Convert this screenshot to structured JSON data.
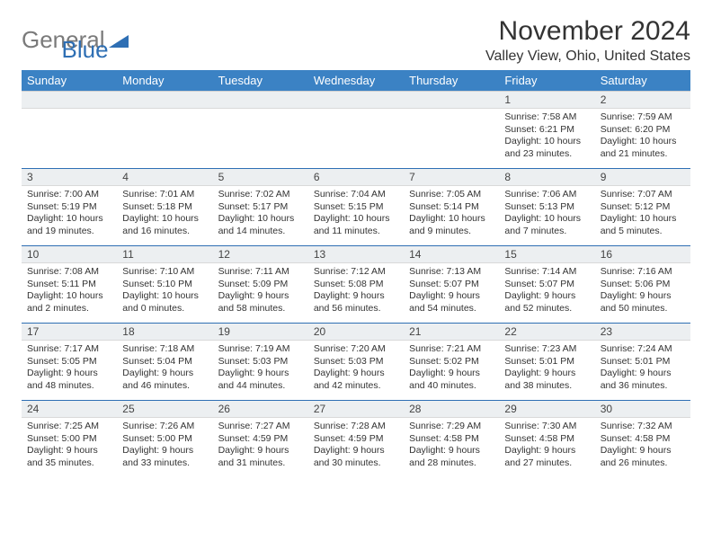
{
  "logo": {
    "text_general": "General",
    "text_blue": "Blue"
  },
  "title": "November 2024",
  "location": "Valley View, Ohio, United States",
  "colors": {
    "header_bg": "#3b82c4",
    "header_text": "#ffffff",
    "cell_border": "#2e6fb4",
    "daynum_bg": "#eceff1",
    "text": "#333333"
  },
  "weekdays": [
    "Sunday",
    "Monday",
    "Tuesday",
    "Wednesday",
    "Thursday",
    "Friday",
    "Saturday"
  ],
  "weeks": [
    [
      null,
      null,
      null,
      null,
      null,
      {
        "n": "1",
        "sunrise": "7:58 AM",
        "sunset": "6:21 PM",
        "dl": "10 hours and 23 minutes."
      },
      {
        "n": "2",
        "sunrise": "7:59 AM",
        "sunset": "6:20 PM",
        "dl": "10 hours and 21 minutes."
      }
    ],
    [
      {
        "n": "3",
        "sunrise": "7:00 AM",
        "sunset": "5:19 PM",
        "dl": "10 hours and 19 minutes."
      },
      {
        "n": "4",
        "sunrise": "7:01 AM",
        "sunset": "5:18 PM",
        "dl": "10 hours and 16 minutes."
      },
      {
        "n": "5",
        "sunrise": "7:02 AM",
        "sunset": "5:17 PM",
        "dl": "10 hours and 14 minutes."
      },
      {
        "n": "6",
        "sunrise": "7:04 AM",
        "sunset": "5:15 PM",
        "dl": "10 hours and 11 minutes."
      },
      {
        "n": "7",
        "sunrise": "7:05 AM",
        "sunset": "5:14 PM",
        "dl": "10 hours and 9 minutes."
      },
      {
        "n": "8",
        "sunrise": "7:06 AM",
        "sunset": "5:13 PM",
        "dl": "10 hours and 7 minutes."
      },
      {
        "n": "9",
        "sunrise": "7:07 AM",
        "sunset": "5:12 PM",
        "dl": "10 hours and 5 minutes."
      }
    ],
    [
      {
        "n": "10",
        "sunrise": "7:08 AM",
        "sunset": "5:11 PM",
        "dl": "10 hours and 2 minutes."
      },
      {
        "n": "11",
        "sunrise": "7:10 AM",
        "sunset": "5:10 PM",
        "dl": "10 hours and 0 minutes."
      },
      {
        "n": "12",
        "sunrise": "7:11 AM",
        "sunset": "5:09 PM",
        "dl": "9 hours and 58 minutes."
      },
      {
        "n": "13",
        "sunrise": "7:12 AM",
        "sunset": "5:08 PM",
        "dl": "9 hours and 56 minutes."
      },
      {
        "n": "14",
        "sunrise": "7:13 AM",
        "sunset": "5:07 PM",
        "dl": "9 hours and 54 minutes."
      },
      {
        "n": "15",
        "sunrise": "7:14 AM",
        "sunset": "5:07 PM",
        "dl": "9 hours and 52 minutes."
      },
      {
        "n": "16",
        "sunrise": "7:16 AM",
        "sunset": "5:06 PM",
        "dl": "9 hours and 50 minutes."
      }
    ],
    [
      {
        "n": "17",
        "sunrise": "7:17 AM",
        "sunset": "5:05 PM",
        "dl": "9 hours and 48 minutes."
      },
      {
        "n": "18",
        "sunrise": "7:18 AM",
        "sunset": "5:04 PM",
        "dl": "9 hours and 46 minutes."
      },
      {
        "n": "19",
        "sunrise": "7:19 AM",
        "sunset": "5:03 PM",
        "dl": "9 hours and 44 minutes."
      },
      {
        "n": "20",
        "sunrise": "7:20 AM",
        "sunset": "5:03 PM",
        "dl": "9 hours and 42 minutes."
      },
      {
        "n": "21",
        "sunrise": "7:21 AM",
        "sunset": "5:02 PM",
        "dl": "9 hours and 40 minutes."
      },
      {
        "n": "22",
        "sunrise": "7:23 AM",
        "sunset": "5:01 PM",
        "dl": "9 hours and 38 minutes."
      },
      {
        "n": "23",
        "sunrise": "7:24 AM",
        "sunset": "5:01 PM",
        "dl": "9 hours and 36 minutes."
      }
    ],
    [
      {
        "n": "24",
        "sunrise": "7:25 AM",
        "sunset": "5:00 PM",
        "dl": "9 hours and 35 minutes."
      },
      {
        "n": "25",
        "sunrise": "7:26 AM",
        "sunset": "5:00 PM",
        "dl": "9 hours and 33 minutes."
      },
      {
        "n": "26",
        "sunrise": "7:27 AM",
        "sunset": "4:59 PM",
        "dl": "9 hours and 31 minutes."
      },
      {
        "n": "27",
        "sunrise": "7:28 AM",
        "sunset": "4:59 PM",
        "dl": "9 hours and 30 minutes."
      },
      {
        "n": "28",
        "sunrise": "7:29 AM",
        "sunset": "4:58 PM",
        "dl": "9 hours and 28 minutes."
      },
      {
        "n": "29",
        "sunrise": "7:30 AM",
        "sunset": "4:58 PM",
        "dl": "9 hours and 27 minutes."
      },
      {
        "n": "30",
        "sunrise": "7:32 AM",
        "sunset": "4:58 PM",
        "dl": "9 hours and 26 minutes."
      }
    ]
  ],
  "labels": {
    "sunrise": "Sunrise: ",
    "sunset": "Sunset: ",
    "daylight": "Daylight: "
  }
}
